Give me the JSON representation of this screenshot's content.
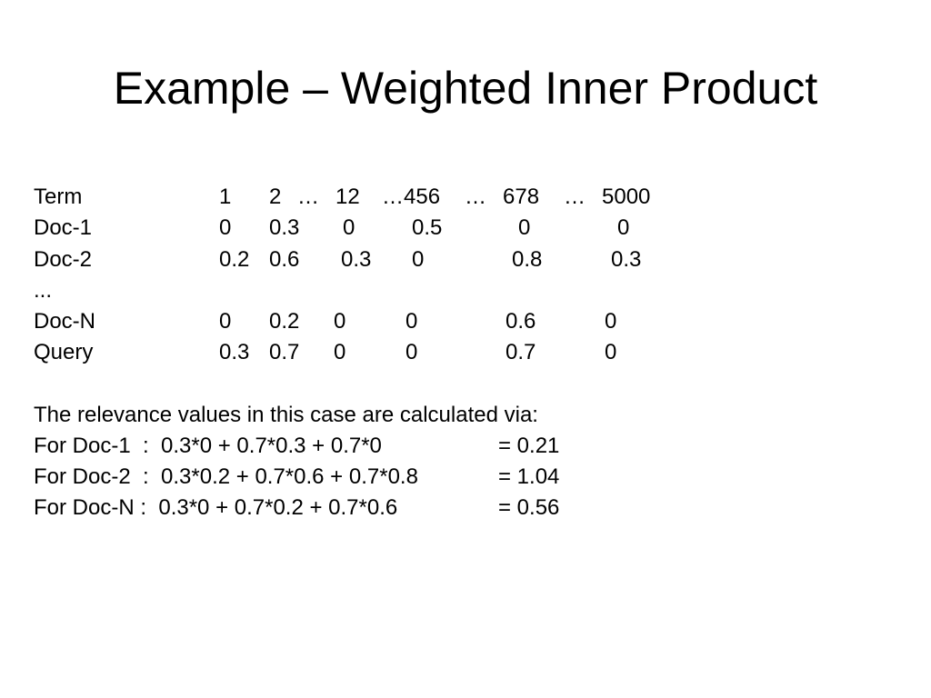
{
  "title": "Example – Weighted Inner Product",
  "table": {
    "header": [
      "Term",
      "1",
      "2",
      "…",
      "12",
      "…456",
      "…",
      "678",
      "…",
      "5000"
    ],
    "rows": [
      [
        "Doc-1",
        "0",
        "0.3",
        "0",
        "0.5",
        "0",
        "0"
      ],
      [
        "Doc-2",
        "0.2",
        "0.6",
        "0.3",
        "0",
        "0.8",
        "0.3"
      ],
      [
        "..."
      ],
      [
        "Doc-N",
        "0",
        "0.2",
        "0",
        "0",
        "0.6",
        "0"
      ],
      [
        "Query",
        "0.3",
        "0.7",
        "0",
        "0",
        "0.7",
        "0"
      ]
    ]
  },
  "explanation": {
    "intro": "The relevance values in this case are calculated via:",
    "lines": [
      {
        "formula": "For Doc-1  :  0.3*0 + 0.7*0.3 + 0.7*0",
        "result": "= 0.21"
      },
      {
        "formula": "For Doc-2  :  0.3*0.2 + 0.7*0.6 + 0.7*0.8",
        "result": "= 1.04"
      },
      {
        "formula": "For Doc-N :  0.3*0 + 0.7*0.2 + 0.7*0.6",
        "result": "= 0.56"
      }
    ]
  }
}
